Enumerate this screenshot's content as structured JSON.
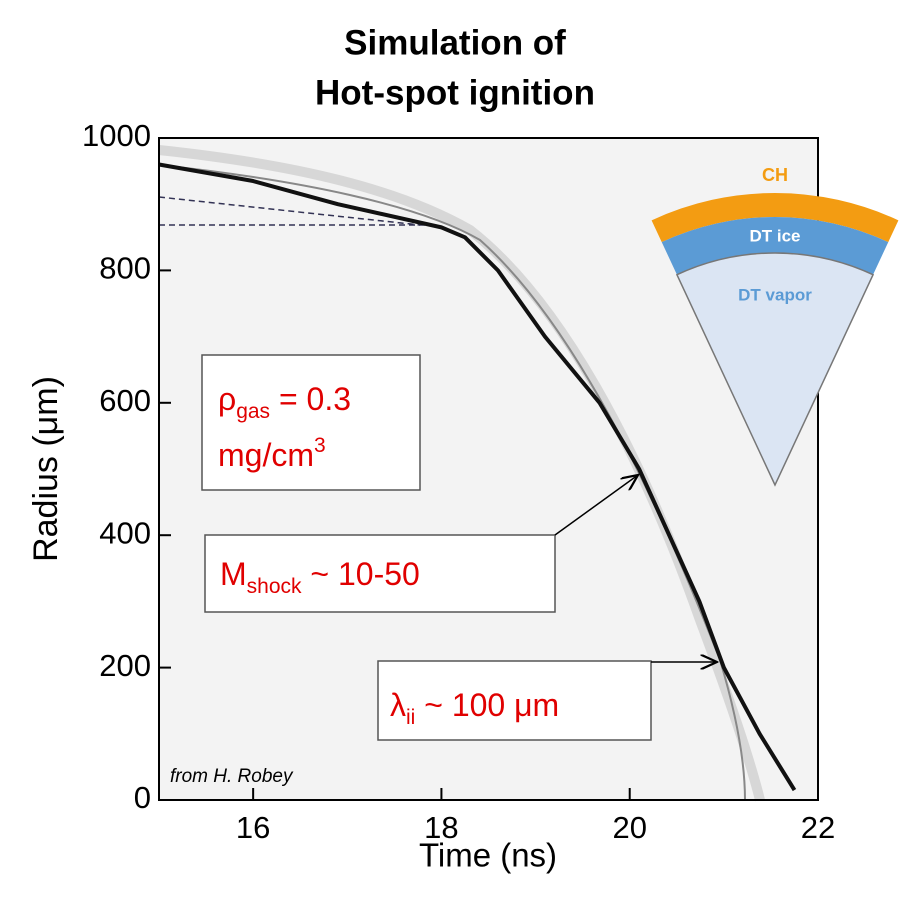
{
  "chart_data": {
    "type": "line",
    "title": [
      "Simulation of",
      "Hot-spot ignition"
    ],
    "x_label": "Time (ns)",
    "y_label": "Radius (μm)",
    "xlim": [
      15,
      22
    ],
    "xticks": [
      16,
      18,
      20,
      22
    ],
    "ylim": [
      0,
      1000
    ],
    "yticks": [
      0,
      200,
      400,
      600,
      800,
      1000
    ],
    "series": [
      {
        "color": "#111111",
        "x": [
          15,
          16,
          16.9,
          18,
          18.25,
          18.6,
          19.1,
          19.68,
          20.1,
          20.74,
          21.0,
          21.38,
          21.75
        ],
        "values": [
          960,
          935,
          900,
          865,
          850,
          800,
          700,
          600,
          500,
          300,
          200,
          100,
          15
        ]
      }
    ],
    "annotations": [
      {
        "parts": [
          "ρ",
          "gas",
          " = 0.3",
          "mg/cm",
          "3"
        ]
      },
      {
        "parts": [
          "M",
          "shock",
          " ~ 10-50"
        ]
      },
      {
        "parts": [
          "λ",
          "ii",
          " ~ 100 μm"
        ]
      }
    ],
    "credit": "from H. Robey",
    "inset": [
      "CH",
      "DT ice",
      "DT vapor"
    ]
  }
}
